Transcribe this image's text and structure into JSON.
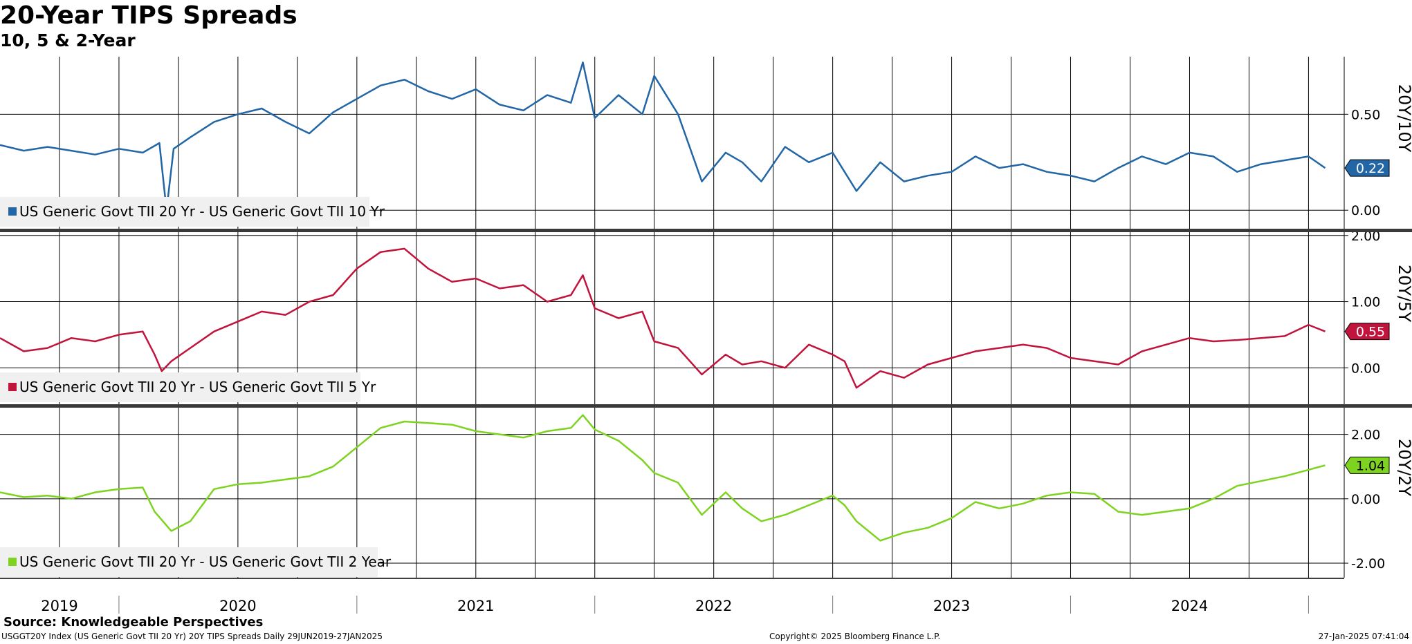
{
  "header": {
    "title": "20-Year TIPS Spreads",
    "subtitle": "10, 5 & 2-Year"
  },
  "footer": {
    "source": "Source: Knowledgeable Perspectives",
    "index_info": "USGGT20Y Index (US Generic Govt TII 20 Yr) 20Y TIPS Spreads  Daily 29JUN2019-27JAN2025",
    "copyright": "Copyright© 2025 Bloomberg Finance L.P.",
    "timestamp": "27-Jan-2025 07:41:04"
  },
  "chart_data": [
    {
      "type": "line",
      "panel_label": "20Y/10Y",
      "color": "#2266a6",
      "legend": "US Generic Govt TII 20 Yr - US Generic Govt TII 10 Yr",
      "last_value": 0.22,
      "last_value_label": "0.22",
      "ylim": [
        -0.1,
        0.8
      ],
      "yticks": [
        0.0,
        0.5
      ],
      "ytick_labels": [
        "0.00",
        "0.50"
      ],
      "x": [
        2019.5,
        2019.6,
        2019.7,
        2019.8,
        2019.9,
        2020.0,
        2020.1,
        2020.17,
        2020.2,
        2020.23,
        2020.3,
        2020.4,
        2020.5,
        2020.6,
        2020.7,
        2020.8,
        2020.9,
        2021.0,
        2021.1,
        2021.2,
        2021.3,
        2021.4,
        2021.5,
        2021.6,
        2021.7,
        2021.8,
        2021.9,
        2021.95,
        2022.0,
        2022.1,
        2022.2,
        2022.25,
        2022.35,
        2022.45,
        2022.55,
        2022.62,
        2022.7,
        2022.8,
        2022.9,
        2023.0,
        2023.05,
        2023.1,
        2023.2,
        2023.3,
        2023.4,
        2023.5,
        2023.6,
        2023.7,
        2023.8,
        2023.9,
        2024.0,
        2024.1,
        2024.2,
        2024.3,
        2024.4,
        2024.5,
        2024.6,
        2024.7,
        2024.8,
        2024.9,
        2025.0,
        2025.07
      ],
      "values": [
        0.34,
        0.31,
        0.33,
        0.31,
        0.29,
        0.32,
        0.3,
        0.35,
        0.0,
        0.32,
        0.38,
        0.46,
        0.5,
        0.53,
        0.46,
        0.4,
        0.51,
        0.58,
        0.65,
        0.68,
        0.62,
        0.58,
        0.63,
        0.55,
        0.52,
        0.6,
        0.56,
        0.77,
        0.48,
        0.6,
        0.5,
        0.7,
        0.5,
        0.15,
        0.3,
        0.25,
        0.15,
        0.33,
        0.25,
        0.3,
        0.2,
        0.1,
        0.25,
        0.15,
        0.18,
        0.2,
        0.28,
        0.22,
        0.24,
        0.2,
        0.18,
        0.15,
        0.22,
        0.28,
        0.24,
        0.3,
        0.28,
        0.2,
        0.24,
        0.26,
        0.28,
        0.22
      ]
    },
    {
      "type": "line",
      "panel_label": "20Y/5Y",
      "color": "#c0143c",
      "legend": "US Generic Govt TII 20 Yr - US Generic Govt TII 5 Yr",
      "last_value": 0.55,
      "last_value_label": "0.55",
      "ylim": [
        -0.55,
        2.05
      ],
      "yticks": [
        0.0,
        1.0,
        2.0
      ],
      "ytick_labels": [
        "0.00",
        "1.00",
        "2.00"
      ],
      "x": [
        2019.5,
        2019.6,
        2019.7,
        2019.8,
        2019.9,
        2020.0,
        2020.1,
        2020.15,
        2020.18,
        2020.22,
        2020.3,
        2020.4,
        2020.5,
        2020.6,
        2020.7,
        2020.8,
        2020.9,
        2021.0,
        2021.1,
        2021.2,
        2021.3,
        2021.4,
        2021.5,
        2021.6,
        2021.7,
        2021.8,
        2021.9,
        2021.95,
        2022.0,
        2022.1,
        2022.2,
        2022.25,
        2022.35,
        2022.45,
        2022.55,
        2022.62,
        2022.7,
        2022.8,
        2022.9,
        2023.0,
        2023.05,
        2023.1,
        2023.2,
        2023.3,
        2023.4,
        2023.5,
        2023.6,
        2023.7,
        2023.8,
        2023.9,
        2024.0,
        2024.1,
        2024.2,
        2024.3,
        2024.4,
        2024.5,
        2024.6,
        2024.7,
        2024.8,
        2024.9,
        2025.0,
        2025.07
      ],
      "values": [
        0.45,
        0.25,
        0.3,
        0.45,
        0.4,
        0.5,
        0.55,
        0.2,
        -0.05,
        0.1,
        0.3,
        0.55,
        0.7,
        0.85,
        0.8,
        1.0,
        1.1,
        1.5,
        1.75,
        1.8,
        1.5,
        1.3,
        1.35,
        1.2,
        1.25,
        1.0,
        1.1,
        1.4,
        0.9,
        0.75,
        0.85,
        0.4,
        0.3,
        -0.1,
        0.2,
        0.05,
        0.1,
        0.0,
        0.35,
        0.2,
        0.1,
        -0.3,
        -0.05,
        -0.15,
        0.05,
        0.15,
        0.25,
        0.3,
        0.35,
        0.3,
        0.15,
        0.1,
        0.05,
        0.25,
        0.35,
        0.45,
        0.4,
        0.42,
        0.45,
        0.48,
        0.65,
        0.55
      ]
    },
    {
      "type": "line",
      "panel_label": "20Y/2Y",
      "color": "#7ed321",
      "legend": "US Generic Govt TII 20 Yr - US Generic Govt TII 2 Year",
      "last_value": 1.04,
      "last_value_label": "1.04",
      "ylim": [
        -2.45,
        2.85
      ],
      "yticks": [
        -2.0,
        0.0,
        2.0
      ],
      "ytick_labels": [
        "-2.00",
        "0.00",
        "2.00"
      ],
      "x": [
        2019.5,
        2019.6,
        2019.7,
        2019.8,
        2019.9,
        2020.0,
        2020.1,
        2020.15,
        2020.22,
        2020.3,
        2020.4,
        2020.5,
        2020.6,
        2020.7,
        2020.8,
        2020.9,
        2021.0,
        2021.1,
        2021.2,
        2021.3,
        2021.4,
        2021.5,
        2021.6,
        2021.7,
        2021.8,
        2021.9,
        2021.95,
        2022.0,
        2022.1,
        2022.2,
        2022.25,
        2022.35,
        2022.45,
        2022.55,
        2022.62,
        2022.7,
        2022.8,
        2022.9,
        2023.0,
        2023.05,
        2023.1,
        2023.2,
        2023.3,
        2023.4,
        2023.5,
        2023.6,
        2023.7,
        2023.8,
        2023.9,
        2024.0,
        2024.1,
        2024.2,
        2024.3,
        2024.4,
        2024.5,
        2024.6,
        2024.7,
        2024.8,
        2024.9,
        2025.0,
        2025.07
      ],
      "values": [
        0.2,
        0.05,
        0.1,
        0.0,
        0.2,
        0.3,
        0.35,
        -0.4,
        -1.0,
        -0.7,
        0.3,
        0.45,
        0.5,
        0.6,
        0.7,
        1.0,
        1.6,
        2.2,
        2.4,
        2.35,
        2.3,
        2.1,
        2.0,
        1.9,
        2.1,
        2.2,
        2.6,
        2.15,
        1.8,
        1.2,
        0.8,
        0.5,
        -0.5,
        0.2,
        -0.3,
        -0.7,
        -0.5,
        -0.2,
        0.1,
        -0.2,
        -0.7,
        -1.3,
        -1.05,
        -0.9,
        -0.6,
        -0.1,
        -0.3,
        -0.15,
        0.1,
        0.2,
        0.15,
        -0.4,
        -0.5,
        -0.4,
        -0.3,
        0.0,
        0.4,
        0.55,
        0.7,
        0.9,
        1.04
      ]
    }
  ],
  "x_axis": {
    "labels": [
      "2019",
      "2020",
      "2021",
      "2022",
      "2023",
      "2024"
    ],
    "label_positions": [
      2019.75,
      2020.5,
      2021.5,
      2022.5,
      2023.5,
      2024.5
    ],
    "year_boundaries": [
      2020,
      2021,
      2022,
      2023,
      2024,
      2025
    ],
    "range": [
      2019.5,
      2025.15
    ]
  }
}
